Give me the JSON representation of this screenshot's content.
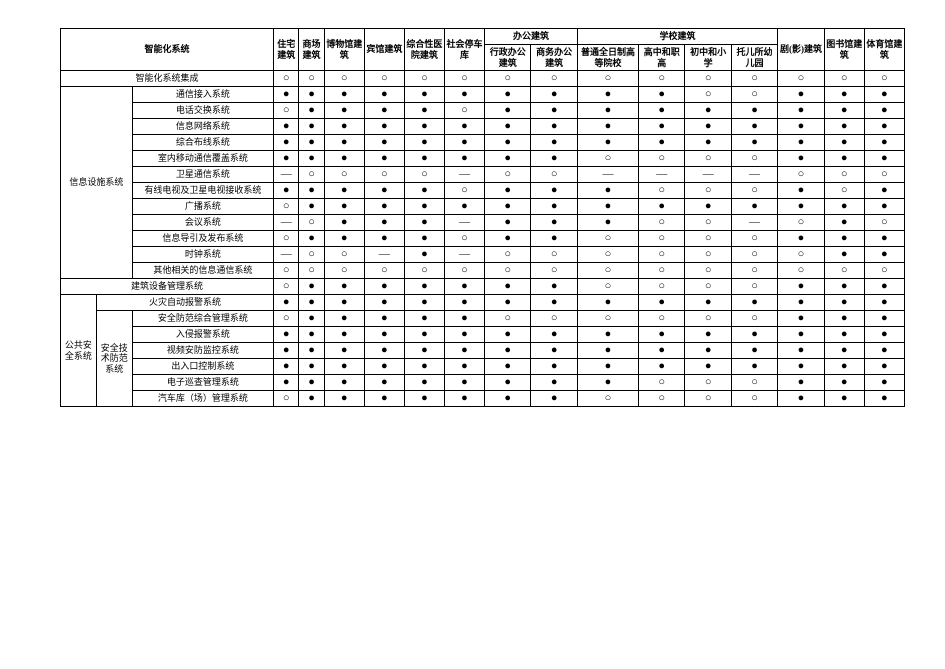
{
  "legend": {
    "filled": "●",
    "hollow": "○",
    "dash": "—"
  },
  "colors": {
    "border": "#000000",
    "background": "#ffffff",
    "text": "#000000"
  },
  "header": {
    "left_title": "智能化系统",
    "buildings": {
      "residence": "住宅建筑",
      "commercial": "商场建筑",
      "museum": "博物馆建筑",
      "guesthouse": "宾馆建筑",
      "hospital": "综合性医院建筑",
      "parking": "社会停车库",
      "theater": "剧(影)建筑",
      "library": "图书馆建筑",
      "sports": "体育馆建筑"
    },
    "office_group": "办公建筑",
    "office": {
      "gov": "行政办公建筑",
      "biz": "商务办公建筑"
    },
    "school_group": "学校建筑",
    "school": {
      "university": "普通全日制高等院校",
      "highvoc": "高中和职高",
      "junior": "初中和小学",
      "nursery": "托儿所幼儿园"
    }
  },
  "sections": {
    "integration": {
      "label": "智能化系统集成"
    },
    "info_facility_group": {
      "label": "信息设施系统"
    },
    "bems": {
      "label": "建筑设备管理系统"
    },
    "public_safety_group": {
      "label": "公共安全系统"
    },
    "security_tech_group": {
      "label": "安全技术防范系统"
    }
  },
  "rows": [
    {
      "id": "integration",
      "label": "智能化系统集成",
      "v": [
        "hollow",
        "hollow",
        "hollow",
        "hollow",
        "hollow",
        "hollow",
        "hollow",
        "hollow",
        "hollow",
        "hollow",
        "hollow",
        "hollow",
        "hollow",
        "hollow",
        "hollow"
      ]
    },
    {
      "id": "info_access",
      "label": "通信接入系统",
      "v": [
        "filled",
        "filled",
        "filled",
        "filled",
        "filled",
        "filled",
        "filled",
        "filled",
        "filled",
        "filled",
        "hollow",
        "hollow",
        "filled",
        "filled",
        "filled"
      ]
    },
    {
      "id": "pbx",
      "label": "电话交换系统",
      "v": [
        "hollow",
        "filled",
        "filled",
        "filled",
        "filled",
        "hollow",
        "filled",
        "filled",
        "filled",
        "filled",
        "filled",
        "filled",
        "filled",
        "filled",
        "filled"
      ]
    },
    {
      "id": "info_net",
      "label": "信息网络系统",
      "v": [
        "filled",
        "filled",
        "filled",
        "filled",
        "filled",
        "filled",
        "filled",
        "filled",
        "filled",
        "filled",
        "filled",
        "filled",
        "filled",
        "filled",
        "filled"
      ]
    },
    {
      "id": "cabling",
      "label": "综合布线系统",
      "v": [
        "filled",
        "filled",
        "filled",
        "filled",
        "filled",
        "filled",
        "filled",
        "filled",
        "filled",
        "filled",
        "filled",
        "filled",
        "filled",
        "filled",
        "filled"
      ]
    },
    {
      "id": "indoor_mobile",
      "label": "室内移动通信覆盖系统",
      "v": [
        "filled",
        "filled",
        "filled",
        "filled",
        "filled",
        "filled",
        "filled",
        "filled",
        "hollow",
        "hollow",
        "hollow",
        "hollow",
        "filled",
        "filled",
        "filled"
      ]
    },
    {
      "id": "sat_comm",
      "label": "卫星通信系统",
      "v": [
        "dashm",
        "hollow",
        "hollow",
        "hollow",
        "hollow",
        "dashm",
        "hollow",
        "hollow",
        "dashm",
        "dashm",
        "dashm",
        "dashm",
        "hollow",
        "hollow",
        "hollow"
      ]
    },
    {
      "id": "catv",
      "label": "有线电视及卫星电视接收系统",
      "v": [
        "filled",
        "filled",
        "filled",
        "filled",
        "filled",
        "hollow",
        "filled",
        "filled",
        "filled",
        "hollow",
        "hollow",
        "hollow",
        "filled",
        "hollow",
        "filled"
      ]
    },
    {
      "id": "pa",
      "label": "广播系统",
      "v": [
        "hollow",
        "filled",
        "filled",
        "filled",
        "filled",
        "filled",
        "filled",
        "filled",
        "filled",
        "filled",
        "filled",
        "filled",
        "filled",
        "filled",
        "filled"
      ]
    },
    {
      "id": "conference",
      "label": "会议系统",
      "v": [
        "dashm",
        "hollow",
        "filled",
        "filled",
        "filled",
        "dashm",
        "filled",
        "filled",
        "filled",
        "hollow",
        "hollow",
        "dashm",
        "hollow",
        "filled",
        "hollow"
      ]
    },
    {
      "id": "info_guide",
      "label": "信息导引及发布系统",
      "v": [
        "hollow",
        "filled",
        "filled",
        "filled",
        "filled",
        "hollow",
        "filled",
        "filled",
        "hollow",
        "hollow",
        "hollow",
        "hollow",
        "filled",
        "filled",
        "filled"
      ]
    },
    {
      "id": "clock",
      "label": "时钟系统",
      "v": [
        "dashm",
        "hollow",
        "hollow",
        "dashm",
        "filled",
        "dashm",
        "hollow",
        "hollow",
        "hollow",
        "hollow",
        "hollow",
        "hollow",
        "hollow",
        "filled",
        "filled"
      ]
    },
    {
      "id": "other_info",
      "label": "其他相关的信息通信系统",
      "v": [
        "hollow",
        "hollow",
        "hollow",
        "hollow",
        "hollow",
        "hollow",
        "hollow",
        "hollow",
        "hollow",
        "hollow",
        "hollow",
        "hollow",
        "hollow",
        "hollow",
        "hollow"
      ]
    },
    {
      "id": "bems",
      "label": "建筑设备管理系统",
      "v": [
        "hollow",
        "filled",
        "filled",
        "filled",
        "filled",
        "filled",
        "filled",
        "filled",
        "hollow",
        "hollow",
        "hollow",
        "hollow",
        "filled",
        "filled",
        "filled"
      ]
    },
    {
      "id": "fire_alarm",
      "label": "火灾自动报警系统",
      "v": [
        "filled",
        "filled",
        "filled",
        "filled",
        "filled",
        "filled",
        "filled",
        "filled",
        "filled",
        "filled",
        "filled",
        "filled",
        "filled",
        "filled",
        "filled"
      ]
    },
    {
      "id": "sec_integ",
      "label": "安全防范综合管理系统",
      "v": [
        "hollow",
        "filled",
        "filled",
        "filled",
        "filled",
        "filled",
        "hollow",
        "hollow",
        "hollow",
        "hollow",
        "hollow",
        "hollow",
        "filled",
        "filled",
        "filled"
      ]
    },
    {
      "id": "intrusion",
      "label": "入侵报警系统",
      "v": [
        "filled",
        "filled",
        "filled",
        "filled",
        "filled",
        "filled",
        "filled",
        "filled",
        "filled",
        "filled",
        "filled",
        "filled",
        "filled",
        "filled",
        "filled"
      ]
    },
    {
      "id": "cctv",
      "label": "视频安防监控系统",
      "v": [
        "filled",
        "filled",
        "filled",
        "filled",
        "filled",
        "filled",
        "filled",
        "filled",
        "filled",
        "filled",
        "filled",
        "filled",
        "filled",
        "filled",
        "filled"
      ]
    },
    {
      "id": "access_ctrl",
      "label": "出入口控制系统",
      "v": [
        "filled",
        "filled",
        "filled",
        "filled",
        "filled",
        "filled",
        "filled",
        "filled",
        "filled",
        "filled",
        "filled",
        "filled",
        "filled",
        "filled",
        "filled"
      ]
    },
    {
      "id": "patrol",
      "label": "电子巡查管理系统",
      "v": [
        "filled",
        "filled",
        "filled",
        "filled",
        "filled",
        "filled",
        "filled",
        "filled",
        "filled",
        "hollow",
        "hollow",
        "hollow",
        "filled",
        "filled",
        "filled"
      ]
    },
    {
      "id": "garage",
      "label": "汽车库（场）管理系统",
      "v": [
        "hollow",
        "filled",
        "filled",
        "filled",
        "filled",
        "filled",
        "filled",
        "filled",
        "hollow",
        "hollow",
        "hollow",
        "hollow",
        "filled",
        "filled",
        "filled"
      ]
    }
  ]
}
